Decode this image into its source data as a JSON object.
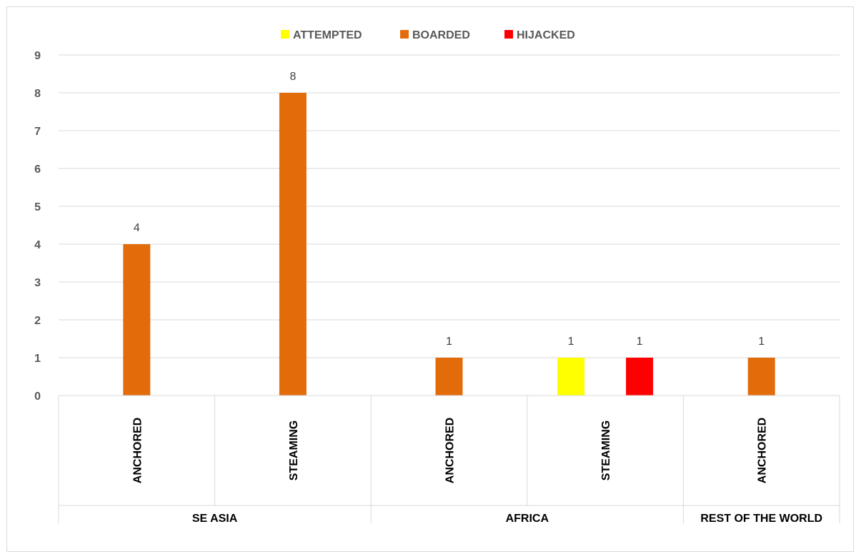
{
  "chart_data": {
    "type": "bar",
    "groups": [
      {
        "name": "SE ASIA",
        "categories": [
          "ANCHORED",
          "STEAMING"
        ]
      },
      {
        "name": "AFRICA",
        "categories": [
          "ANCHORED",
          "STEAMING"
        ]
      },
      {
        "name": "REST OF THE WORLD",
        "categories": [
          "ANCHORED"
        ]
      }
    ],
    "categories": [
      "ANCHORED",
      "STEAMING",
      "ANCHORED",
      "STEAMING",
      "ANCHORED"
    ],
    "series": [
      {
        "name": "ATTEMPTED",
        "color": "#ffff00",
        "values": [
          0,
          0,
          0,
          1,
          0
        ]
      },
      {
        "name": "BOARDED",
        "color": "#e36c0a",
        "values": [
          4,
          8,
          1,
          0,
          1
        ]
      },
      {
        "name": "HIJACKED",
        "color": "#ff0000",
        "values": [
          0,
          0,
          0,
          1,
          0
        ]
      }
    ],
    "ylim": [
      0,
      9
    ],
    "yticks": [
      0,
      1,
      2,
      3,
      4,
      5,
      6,
      7,
      8,
      9
    ],
    "grid": true,
    "legend": "top-center",
    "data_labels": true
  }
}
